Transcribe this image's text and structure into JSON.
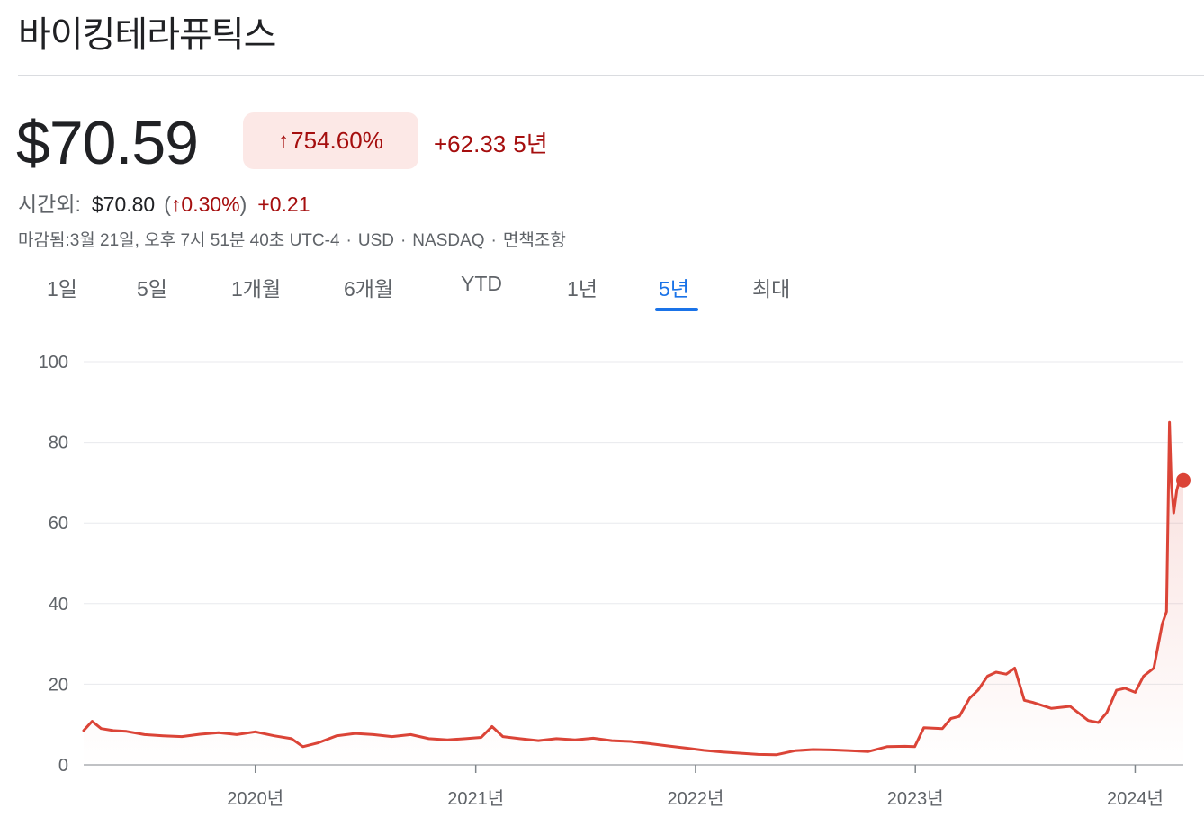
{
  "header": {
    "title": "바이킹테라퓨틱스"
  },
  "quote": {
    "price": "$70.59",
    "change_arrow": "↑",
    "change_pct": "754.60%",
    "change_abs": "+62.33",
    "period": "5년"
  },
  "after_hours": {
    "label": "시간외:",
    "price": "$70.80",
    "open_paren": "(",
    "arrow": "↑",
    "pct": "0.30%",
    "close_paren": ")",
    "abs": "+0.21"
  },
  "meta": {
    "closed": "마감됨:3월 21일, 오후 7시 51분 40초 UTC-4",
    "currency": "USD",
    "exchange": "NASDAQ",
    "sep": "·",
    "disclaimer": "면책조항"
  },
  "tabs": [
    "1일",
    "5일",
    "1개월",
    "6개월",
    "YTD",
    "1년",
    "5년",
    "최대"
  ],
  "active_tab": "5년",
  "colors": {
    "line": "#db4437",
    "up_text": "#a50e0e",
    "up_bg": "#fce8e6",
    "accent": "#1a73e8"
  },
  "chart_data": {
    "type": "line",
    "y_ticks": [
      "100",
      "80",
      "60",
      "40",
      "20",
      "0"
    ],
    "x_ticks": [
      "2020년",
      "2021년",
      "2022년",
      "2023년",
      "2024년"
    ],
    "ylim": [
      0,
      100
    ],
    "xlim": [
      "2019-03-22",
      "2024-03-21"
    ],
    "grid": true,
    "series": [
      {
        "x": [
          "2019-03-22",
          "2019-04-05",
          "2019-04-20",
          "2019-05-10",
          "2019-06-01",
          "2019-07-01",
          "2019-08-01",
          "2019-09-01",
          "2019-10-01",
          "2019-11-01",
          "2019-12-01",
          "2020-01-01",
          "2020-02-01",
          "2020-03-01",
          "2020-03-20",
          "2020-04-15",
          "2020-05-15",
          "2020-06-15",
          "2020-07-15",
          "2020-08-15",
          "2020-09-15",
          "2020-10-15",
          "2020-11-15",
          "2020-12-15",
          "2021-01-10",
          "2021-01-28",
          "2021-02-15",
          "2021-03-15",
          "2021-04-15",
          "2021-05-15",
          "2021-06-15",
          "2021-07-15",
          "2021-08-15",
          "2021-09-15",
          "2021-10-15",
          "2021-11-15",
          "2021-12-15",
          "2022-01-15",
          "2022-02-15",
          "2022-03-15",
          "2022-04-15",
          "2022-05-15",
          "2022-06-15",
          "2022-07-15",
          "2022-08-15",
          "2022-09-15",
          "2022-10-15",
          "2022-11-15",
          "2022-12-15",
          "2022-12-31",
          "2023-01-15",
          "2023-02-15",
          "2023-03-01",
          "2023-03-15",
          "2023-04-01",
          "2023-04-15",
          "2023-05-01",
          "2023-05-15",
          "2023-06-01",
          "2023-06-15",
          "2023-07-01",
          "2023-07-15",
          "2023-08-15",
          "2023-09-15",
          "2023-10-15",
          "2023-11-01",
          "2023-11-15",
          "2023-12-01",
          "2023-12-15",
          "2024-01-01",
          "2024-01-15",
          "2024-02-01",
          "2024-02-15",
          "2024-02-22",
          "2024-02-27",
          "2024-03-01",
          "2024-03-05",
          "2024-03-10",
          "2024-03-15",
          "2024-03-21"
        ],
        "y": [
          8.5,
          10.8,
          9.0,
          8.5,
          8.3,
          7.5,
          7.2,
          7.0,
          7.6,
          8.0,
          7.5,
          8.2,
          7.2,
          6.5,
          4.5,
          5.5,
          7.2,
          7.8,
          7.5,
          7.0,
          7.5,
          6.5,
          6.2,
          6.5,
          6.8,
          9.5,
          7.0,
          6.5,
          6.0,
          6.5,
          6.2,
          6.6,
          6.0,
          5.8,
          5.3,
          4.7,
          4.2,
          3.6,
          3.2,
          2.9,
          2.6,
          2.5,
          3.5,
          3.8,
          3.7,
          3.5,
          3.3,
          4.5,
          4.6,
          4.5,
          9.2,
          9.0,
          11.5,
          12.0,
          16.5,
          18.5,
          22.0,
          23.0,
          22.5,
          24.0,
          16.0,
          15.5,
          14.0,
          14.5,
          11.0,
          10.5,
          13.0,
          18.5,
          19.0,
          18.0,
          22.0,
          24.0,
          35.0,
          38.0,
          85.0,
          70.0,
          62.5,
          68.0,
          71.0,
          70.59
        ]
      }
    ]
  }
}
